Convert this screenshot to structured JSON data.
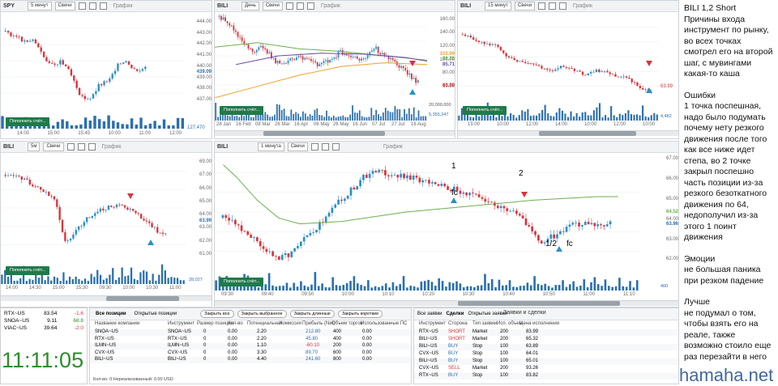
{
  "panels": {
    "p1": {
      "symbol": "SPY",
      "timeframe": "5 минут",
      "chart_type": "Свечи",
      "label": "График",
      "y_ticks": [
        "444.00",
        "443.00",
        "442.00",
        "441.00",
        "440.00",
        "439.00",
        "438.00",
        "437.00"
      ],
      "y_marker": "439.09",
      "x_ticks": [
        "14:00",
        "15:00",
        "15:45",
        "10:00",
        "11:00",
        "12:00"
      ],
      "button": "Пополнить счёт...",
      "vol_label": "127,470"
    },
    "p2": {
      "symbol": "BILI",
      "timeframe": "День",
      "chart_type": "Свечи",
      "label": "График",
      "y_ticks": [
        "160.00",
        "140.00",
        "120.00",
        "100.00",
        "80.00",
        "60.00"
      ],
      "y_markers": [
        "103.99",
        "96.76",
        "85.71",
        "63.99"
      ],
      "x_ticks": [
        "28 Jan",
        "16 Feb",
        "08 Mar",
        "26 Mar",
        "16 Apr",
        "06 May",
        "26 May",
        "16 Jun",
        "07 Jul",
        "27 Jul",
        "16 Aug"
      ],
      "button": "Пополнить счёт...",
      "vol_labels": [
        "20,000,000",
        "5,355,347"
      ]
    },
    "p3": {
      "symbol": "BILI",
      "timeframe": "15 минут",
      "chart_type": "Свечи",
      "label": "График",
      "y_marker": "63.99",
      "x_ticks": [
        "15:00",
        "10:00",
        "12:00",
        "14:00",
        "10:00",
        "12:00",
        "10:00"
      ],
      "button": "Пополнить счёт...",
      "vol_label": "4,482"
    },
    "p4": {
      "symbol": "BILI",
      "timeframe": "5м",
      "chart_type": "Свечи",
      "label": "График",
      "y_ticks": [
        "69.00",
        "67.00",
        "66.00",
        "65.00",
        "64.00",
        "63.00",
        "62.00",
        "61.00"
      ],
      "y_marker": "63.99",
      "x_ticks": [
        "14:00",
        "14:30",
        "15:00",
        "15:30",
        "09:30",
        "10:00",
        "10:30",
        "11:00"
      ],
      "button": "Пополнить счёт...",
      "vol_label": "28,027"
    },
    "p5": {
      "symbol": "BILI",
      "timeframe": "1 минута",
      "chart_type": "Свечи",
      "label": "График",
      "y_ticks": [
        "67.00",
        "66.00",
        "65.00",
        "64.00",
        "63.00",
        "62.00"
      ],
      "y_markers": [
        "64.52",
        "63.96"
      ],
      "x_ticks": [
        "09:30",
        "09:40",
        "09:50",
        "10:00",
        "10:10",
        "10:20",
        "10:30",
        "10:40",
        "10:50",
        "11:00",
        "11:10"
      ],
      "button": "Пополнить счёт...",
      "vol_label": "400",
      "annotations": {
        "a1": "1",
        "fc1": "fc",
        "a2": "2",
        "a12": "1/2",
        "fc2": "fc"
      }
    }
  },
  "quotes": [
    {
      "sym": "RTX~US",
      "price": "83.54",
      "chg": "-1.6"
    },
    {
      "sym": "SNOA~US",
      "price": "9.11",
      "chg": "68.8"
    },
    {
      "sym": "VIAC~US",
      "price": "39.64",
      "chg": "-2.0"
    }
  ],
  "clock": "11:11:05",
  "positions": {
    "tabs": [
      "Все позиции",
      "Открытые позиции"
    ],
    "buttons": [
      "Закрыть все",
      "Закрыть выбранное",
      "Закрыть длинные",
      "Закрыть короткие"
    ],
    "headers": [
      "Название компании",
      "Инструмент",
      "Размер позиции",
      "Кол-во",
      "Потенциальная",
      "Комиссия",
      "Прибыль (Net)",
      "Объем торгов",
      "Использованные ПС"
    ],
    "rows": [
      {
        "name": "SNOA~US",
        "instr": "SNOA~US",
        "size": "0",
        "qty": "0.00",
        "pot": "2.20",
        "comm": "212.80",
        "profit": "400",
        "vol": "0.00"
      },
      {
        "name": "RTX~US",
        "instr": "RTX~US",
        "size": "0",
        "qty": "0.00",
        "pot": "2.20",
        "comm": "45.80",
        "profit": "400",
        "vol": "0.00"
      },
      {
        "name": "ILMN~US",
        "instr": "ILMN~US",
        "size": "0",
        "qty": "0.00",
        "pot": "1.10",
        "comm": "-60.10",
        "profit": "200",
        "vol": "0.00"
      },
      {
        "name": "CVX~US",
        "instr": "CVX~US",
        "size": "0",
        "qty": "0.00",
        "pot": "3.30",
        "comm": "89.70",
        "profit": "600",
        "vol": "0.00"
      },
      {
        "name": "BILI~US",
        "instr": "BILI~US",
        "size": "0",
        "qty": "0.00",
        "pot": "4.40",
        "comm": "241.60",
        "profit": "800",
        "vol": "0.00"
      }
    ],
    "footer": "Кол-во: 0    Нереализованный: 0.00 USD"
  },
  "trades": {
    "title": "Заявки и сделки",
    "tabs": [
      "Все заявки",
      "Сделки",
      "Открытые заявки"
    ],
    "headers": [
      "Инструмент",
      "Сторона",
      "Тип заявки",
      "Исп. объем",
      "Цена исполнения"
    ],
    "rows": [
      {
        "instr": "RTX~US",
        "side": "SHORT",
        "type": "Market",
        "vol": "200",
        "price": "83.99"
      },
      {
        "instr": "BILI~US",
        "side": "SHORT",
        "type": "Market",
        "vol": "200",
        "price": "65.32"
      },
      {
        "instr": "BILI~US",
        "side": "BUY",
        "type": "Stop",
        "vol": "100",
        "price": "63.89"
      },
      {
        "instr": "CVX~US",
        "side": "BUY",
        "type": "Stop",
        "vol": "100",
        "price": "64.01"
      },
      {
        "instr": "BILI~US",
        "side": "BUY",
        "type": "Stop",
        "vol": "100",
        "price": "65.01"
      },
      {
        "instr": "CVX~US",
        "side": "SELL",
        "type": "Market",
        "vol": "200",
        "price": "93.26"
      },
      {
        "instr": "RTX~US",
        "side": "BUY",
        "type": "Stop",
        "vol": "100",
        "price": "83.82"
      }
    ]
  },
  "notes": [
    "BILI 1,2 Short",
    "Причины входа инструмент по рынку, во всех точках смотрел его на второй шаг, с мувингами какая-то каша",
    "",
    "Ошибки",
    "1 точка поспешная, надо было подумать почему нету резкого движения после того как все ниже идет степа, во 2 точке закрыл поспешно часть позиции из-за резкого безоткатного движения по 64, недополучил из-за этого 1 поинт движения",
    "",
    "Эмоции",
    "не большая паника при резком падение",
    "",
    "Лучше",
    "не подумал о том, чтобы взять его на реале, также возможно стоило еще раз перезайти в него"
  ],
  "watermark": "hamaha.net",
  "colors": {
    "up": "#2a8fc9",
    "down": "#d9343b",
    "ma_green": "#6ab04c",
    "ma_orange": "#f0a030",
    "ma_purple": "#6a4ab0",
    "accent_green": "#1f7a4a"
  }
}
